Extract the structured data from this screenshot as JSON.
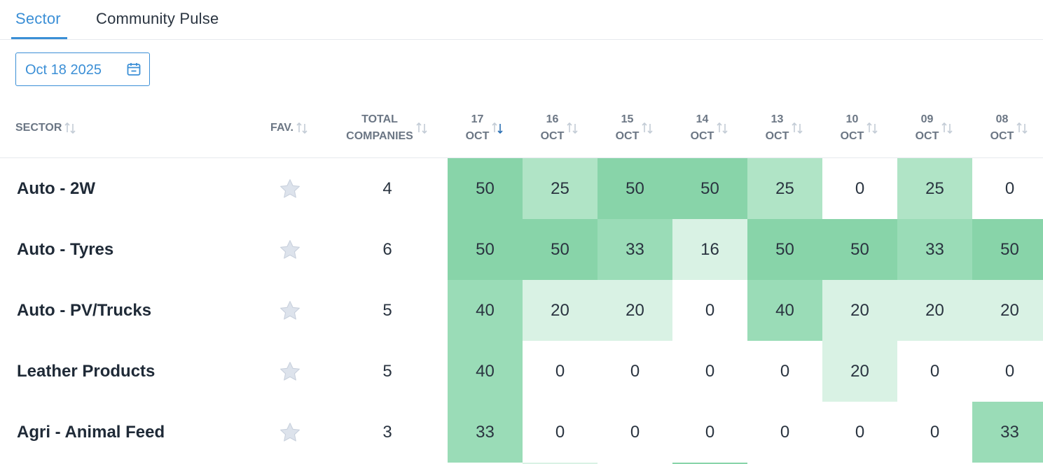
{
  "tabs": [
    {
      "label": "Sector",
      "active": true
    },
    {
      "label": "Community Pulse",
      "active": false
    }
  ],
  "date_picker": {
    "value": "Oct 18 2025",
    "icon": "calendar-icon"
  },
  "colors": {
    "accent": "#3b8fd6",
    "heat_high": "#88d4a9",
    "heat_mid": "#9adcb7",
    "heat_low": "#b0e4c6",
    "heat_faint": "#d9f2e4",
    "heat_none": "#ffffff"
  },
  "table": {
    "headers": {
      "sector": "SECTOR",
      "fav": "FAV.",
      "total": [
        "TOTAL",
        "COMPANIES"
      ]
    },
    "date_columns": [
      {
        "day": "17",
        "month": "OCT",
        "sorted": "desc"
      },
      {
        "day": "16",
        "month": "OCT"
      },
      {
        "day": "15",
        "month": "OCT"
      },
      {
        "day": "14",
        "month": "OCT"
      },
      {
        "day": "13",
        "month": "OCT"
      },
      {
        "day": "10",
        "month": "OCT"
      },
      {
        "day": "09",
        "month": "OCT"
      },
      {
        "day": "08",
        "month": "OCT"
      }
    ],
    "rows": [
      {
        "sector": "Auto - 2W",
        "fav": false,
        "total": "4",
        "values": [
          "50",
          "25",
          "50",
          "50",
          "25",
          "0",
          "25",
          "0"
        ]
      },
      {
        "sector": "Auto - Tyres",
        "fav": false,
        "total": "6",
        "values": [
          "50",
          "50",
          "33",
          "16",
          "50",
          "50",
          "33",
          "50"
        ]
      },
      {
        "sector": "Auto - PV/Trucks",
        "fav": false,
        "total": "5",
        "values": [
          "40",
          "20",
          "20",
          "0",
          "40",
          "20",
          "20",
          "20"
        ]
      },
      {
        "sector": "Leather Products",
        "fav": false,
        "total": "5",
        "values": [
          "40",
          "0",
          "0",
          "0",
          "0",
          "20",
          "0",
          "0"
        ]
      },
      {
        "sector": "Agri - Animal Feed",
        "fav": false,
        "total": "3",
        "values": [
          "33",
          "0",
          "0",
          "0",
          "0",
          "0",
          "0",
          "33"
        ]
      }
    ],
    "next_row_colors": [
      "heat_none",
      "heat_faint",
      "heat_none",
      "heat_high",
      "heat_none",
      "heat_none",
      "heat_none",
      "heat_none"
    ]
  }
}
